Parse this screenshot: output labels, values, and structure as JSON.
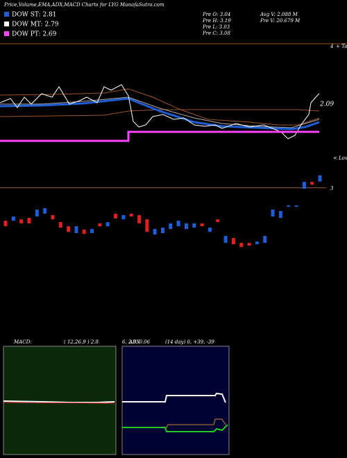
{
  "header": {
    "title": "Price,Volume,EMA,ADX,MACD Charts for LYG MunafaSutra.com",
    "legend": [
      {
        "label": "DOW ST: 2.81",
        "color": "#1e5fd8"
      },
      {
        "label": "DOW MT: 2.79",
        "color": "#ffffff"
      },
      {
        "label": "DOW PT: 2.69",
        "color": "#ff44ff"
      }
    ],
    "prev": [
      "Pre  O: 3.04",
      "Pre  H: 3.19",
      "Pre  L: 3.03",
      "Pre  C: 3.08"
    ],
    "volume": [
      "Avg V: 2.088  M",
      "Pre  V: 20.679 M"
    ]
  },
  "annotations": {
    "tops_value": "4",
    "tops": "+ Tops",
    "lows": "< Lows",
    "ema_label": "2.09"
  },
  "chart_data": {
    "type": "candlestick",
    "open": [
      2.79,
      2.79,
      2.799,
      2.808,
      2.817,
      2.835,
      2.826,
      2.781,
      2.755,
      2.711,
      2.733,
      2.711,
      2.773,
      2.755,
      2.835,
      2.799,
      2.835,
      2.826,
      2.799,
      2.702,
      2.711,
      2.737,
      2.755,
      2.737,
      2.746,
      2.773,
      2.719,
      2.799,
      2.649,
      2.68,
      2.649,
      2.649,
      2.64,
      2.649,
      2.817,
      2.808,
      2.879,
      2.879,
      2.994,
      3.038,
      3.04
    ],
    "close": [
      2.755,
      2.817,
      2.773,
      2.773,
      2.861,
      2.87,
      2.799,
      2.746,
      2.719,
      2.755,
      2.706,
      2.737,
      2.755,
      2.781,
      2.804,
      2.826,
      2.817,
      2.773,
      2.719,
      2.737,
      2.746,
      2.773,
      2.79,
      2.773,
      2.773,
      2.755,
      2.746,
      2.781,
      2.693,
      2.64,
      2.622,
      2.631,
      2.657,
      2.693,
      2.861,
      2.852,
      2.888,
      2.888,
      3.038,
      3.02,
      3.08
    ],
    "up_color": "#1e5fd8",
    "down_color": "#e02020",
    "ylim": [
      2.56,
      3.18
    ],
    "yticks": [
      3
    ]
  },
  "macd": {
    "title": "MACD:",
    "params": "( 12,26,9 ) 2.8",
    "values": "6, 2.8, 0.06"
  },
  "adx": {
    "title": "ADX",
    "params": "(14  day) 0, +39, -39"
  }
}
